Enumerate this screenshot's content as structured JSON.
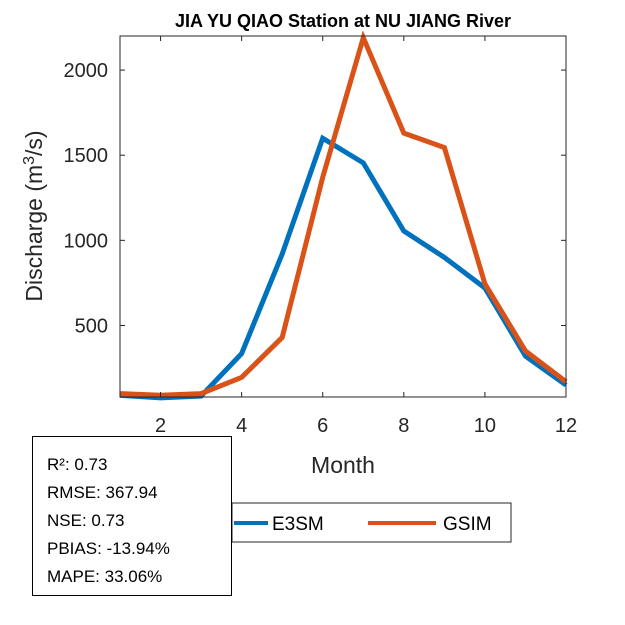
{
  "chart_data": {
    "type": "line",
    "title": "JIA YU QIAO  Station at  NU JIANG  River",
    "xlabel": "Month",
    "ylabel": "Discharge (m^3/s)",
    "ylabel_parts": {
      "prefix": "Discharge (m",
      "superscript": "3",
      "suffix": "/s)"
    },
    "xlim": [
      1,
      12
    ],
    "ylim": [
      80,
      2200
    ],
    "xticks": [
      2,
      4,
      6,
      8,
      10,
      12
    ],
    "yticks": [
      500,
      1000,
      1500,
      2000
    ],
    "x": [
      1,
      2,
      3,
      4,
      5,
      6,
      7,
      8,
      9,
      10,
      11,
      12
    ],
    "series": [
      {
        "name": "E3SM",
        "color": "#0072BD",
        "values": [
          90,
          75,
          85,
          335,
          920,
          1600,
          1455,
          1055,
          900,
          720,
          320,
          150
        ]
      },
      {
        "name": "GSIM",
        "color": "#D95319",
        "values": [
          100,
          90,
          100,
          195,
          430,
          1370,
          2190,
          1630,
          1545,
          745,
          350,
          170
        ]
      }
    ],
    "legend": [
      "E3SM",
      "GSIM"
    ]
  },
  "stats": {
    "r2": "R²: 0.73",
    "rmse": "RMSE: 367.94",
    "nse": "NSE: 0.73",
    "pbias": "PBIAS: -13.94%",
    "mape": "MAPE: 33.06%"
  }
}
